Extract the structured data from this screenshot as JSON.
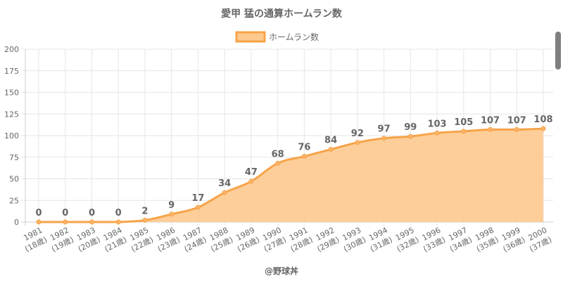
{
  "chart_data": {
    "type": "area",
    "title": "愛甲 猛の通算ホームラン数",
    "legend": {
      "label": "ホームラン数",
      "placement": "top"
    },
    "credit": "@野球丼",
    "colors": {
      "line": "#f7a348",
      "fill": "#fdc98e",
      "point": "#f9b46a",
      "grid": "#e6e6e6",
      "label": "#666666"
    },
    "ylim": [
      0,
      200
    ],
    "yticks": [
      0,
      25,
      50,
      75,
      100,
      125,
      150,
      175,
      200
    ],
    "grid": true,
    "categories": [
      {
        "year": "1981",
        "age": "(18歳)"
      },
      {
        "year": "1982",
        "age": "(19歳)"
      },
      {
        "year": "1983",
        "age": "(20歳)"
      },
      {
        "year": "1984",
        "age": "(21歳)"
      },
      {
        "year": "1985",
        "age": "(22歳)"
      },
      {
        "year": "1986",
        "age": "(23歳)"
      },
      {
        "year": "1987",
        "age": "(24歳)"
      },
      {
        "year": "1988",
        "age": "(25歳)"
      },
      {
        "year": "1989",
        "age": "(26歳)"
      },
      {
        "year": "1990",
        "age": "(27歳)"
      },
      {
        "year": "1991",
        "age": "(28歳)"
      },
      {
        "year": "1992",
        "age": "(29歳)"
      },
      {
        "year": "1993",
        "age": "(30歳)"
      },
      {
        "year": "1994",
        "age": "(31歳)"
      },
      {
        "year": "1995",
        "age": "(32歳)"
      },
      {
        "year": "1996",
        "age": "(33歳)"
      },
      {
        "year": "1997",
        "age": "(34歳)"
      },
      {
        "year": "1998",
        "age": "(35歳)"
      },
      {
        "year": "1999",
        "age": "(36歳)"
      },
      {
        "year": "2000",
        "age": "(37歳)"
      }
    ],
    "series": [
      {
        "name": "ホームラン数",
        "values": [
          0,
          0,
          0,
          0,
          2,
          9,
          17,
          34,
          47,
          68,
          76,
          84,
          92,
          97,
          99,
          103,
          105,
          107,
          107,
          108
        ]
      }
    ]
  }
}
